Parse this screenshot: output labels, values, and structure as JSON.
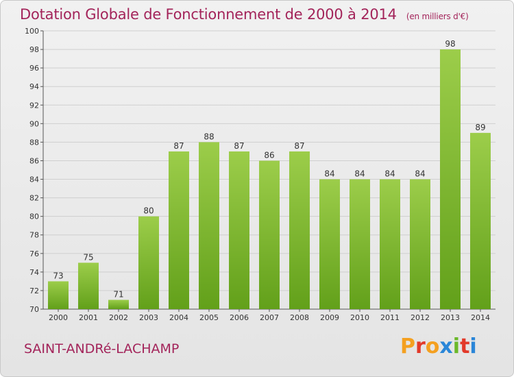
{
  "title": "Dotation Globale de Fonctionnement de 2000 à 2014",
  "title_unit": "(en milliers d'€)",
  "commune": "SAINT-ANDRé-LACHAMP",
  "logo_text": "Proxiti",
  "colors": {
    "title": "#a3245a",
    "bar_light": "#9ccd4a",
    "bar_dark": "#62a01a",
    "logo": [
      "#f4a020",
      "#e23a2a",
      "#f4a020",
      "#2a86d8",
      "#6bb82a",
      "#e23a2a",
      "#2a86d8"
    ]
  },
  "chart_data": {
    "type": "bar",
    "title": "Dotation Globale de Fonctionnement de 2000 à 2014",
    "ylabel": "",
    "xlabel": "",
    "categories": [
      "2000",
      "2001",
      "2002",
      "2003",
      "2004",
      "2005",
      "2006",
      "2007",
      "2008",
      "2009",
      "2010",
      "2011",
      "2012",
      "2013",
      "2014"
    ],
    "values": [
      73,
      75,
      71,
      80,
      87,
      88,
      87,
      86,
      87,
      84,
      84,
      84,
      84,
      98,
      89
    ],
    "ylim": [
      70,
      100
    ],
    "yticks": [
      70,
      72,
      74,
      76,
      78,
      80,
      82,
      84,
      86,
      88,
      90,
      92,
      94,
      96,
      98,
      100
    ],
    "grid": true,
    "data_labels": true
  }
}
